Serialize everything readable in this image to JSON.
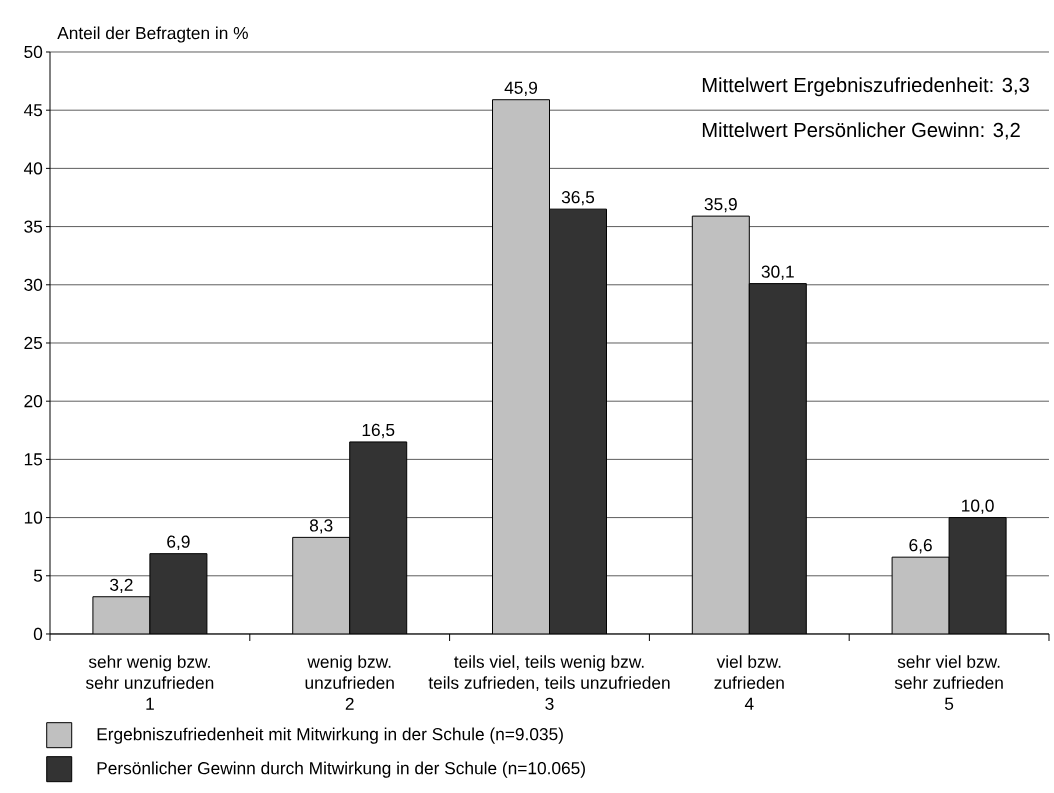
{
  "chart_data": {
    "type": "bar",
    "ylabel": "Anteil der Befragten in %",
    "categories": [
      "sehr wenig bzw.\nsehr unzufrieden\n1",
      "wenig bzw.\nunzufrieden\n2",
      "teils viel, teils wenig bzw.\nteils zufrieden, teils unzufrieden\n3",
      "viel bzw.\nzufrieden\n4",
      "sehr viel bzw.\nsehr zufrieden\n5"
    ],
    "series": [
      {
        "name": "Ergebniszufriedenheit mit Mitwirkung in der Schule (n=9.035)",
        "color": "#c0c0c0",
        "values": [
          3.2,
          8.3,
          45.9,
          35.9,
          6.6
        ],
        "value_labels": [
          "3,2",
          "8,3",
          "45,9",
          "35,9",
          "6,6"
        ]
      },
      {
        "name": "Persönlicher Gewinn durch Mitwirkung in der Schule (n=10.065)",
        "color": "#333333",
        "values": [
          6.9,
          16.5,
          36.5,
          30.1,
          10.0
        ],
        "value_labels": [
          "6,9",
          "16,5",
          "36,5",
          "30,1",
          "10,0"
        ]
      }
    ],
    "ylim": [
      0,
      50
    ],
    "yticks": [
      0,
      5,
      10,
      15,
      20,
      25,
      30,
      35,
      40,
      45,
      50
    ],
    "grid": "y",
    "legend": "bottom",
    "annotations": [
      "Mittelwert Ergebniszufriedenheit: 3,3",
      "Mittelwert Persönlicher Gewinn: 3,2"
    ]
  }
}
